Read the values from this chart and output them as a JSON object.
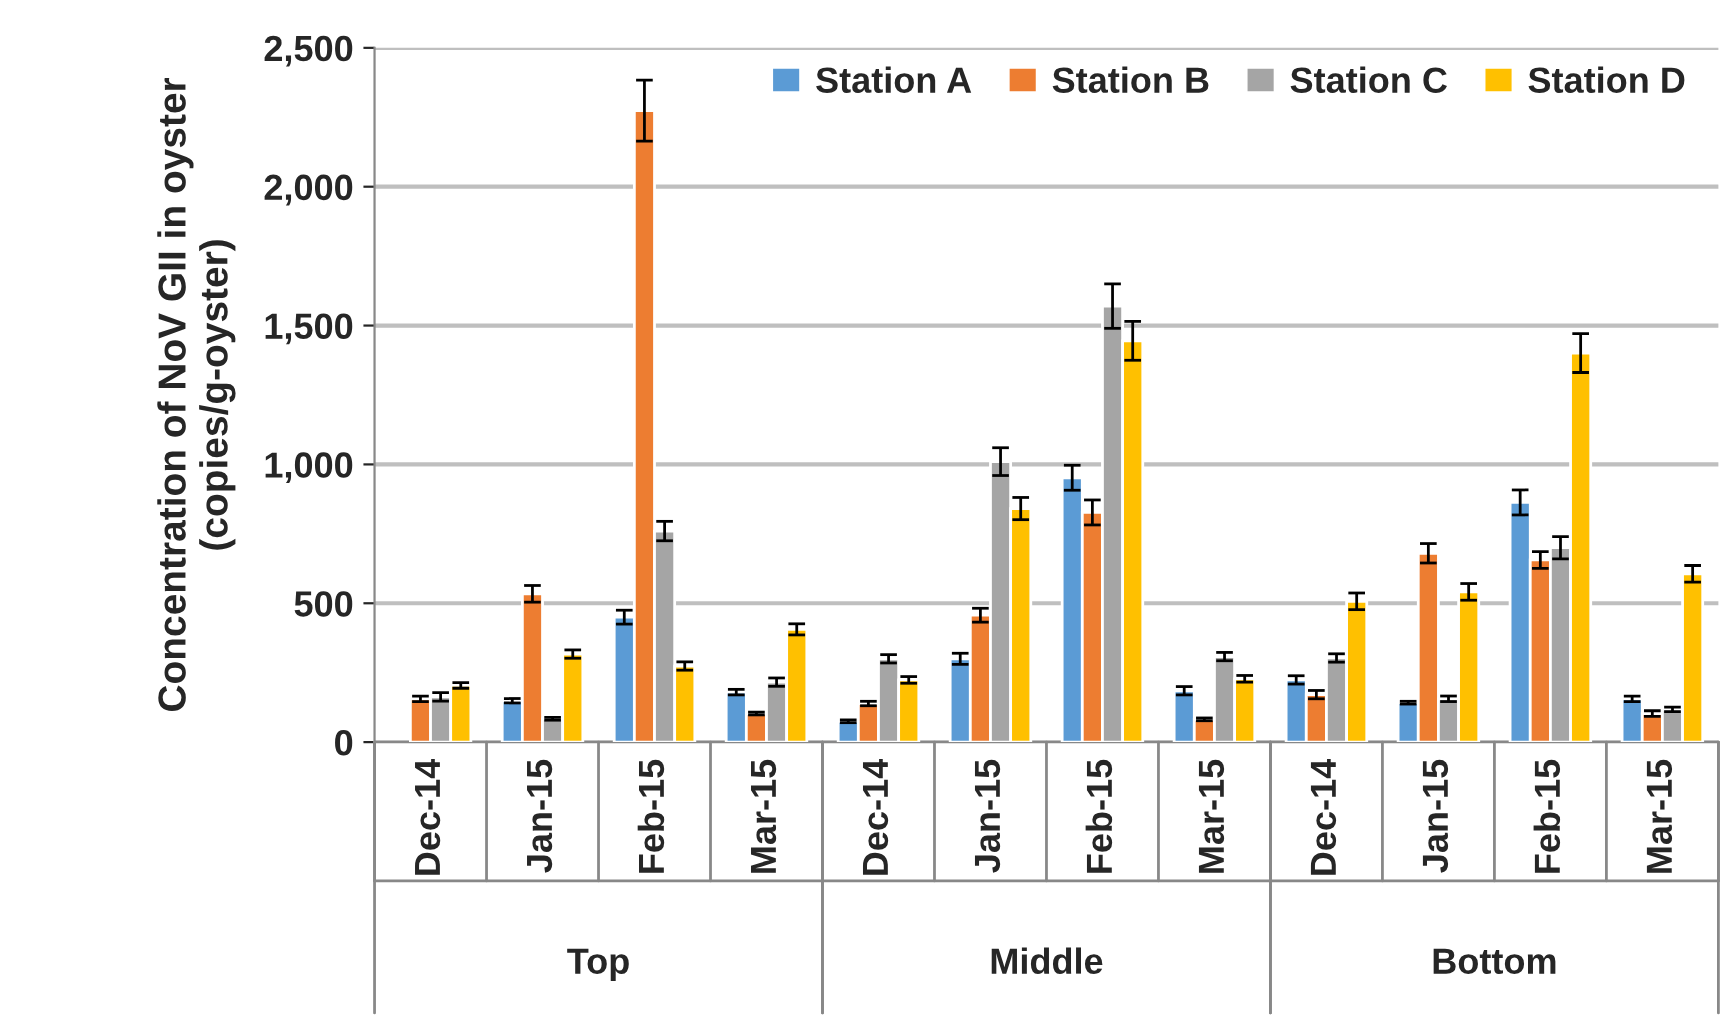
{
  "chart_data": {
    "type": "bar",
    "ylabel": "Concentration of NoV GII in oyster\n(copies/g-oyster)",
    "categories": [
      "Dec-14",
      "Jan-15",
      "Feb-15",
      "Mar-15",
      "Dec-14",
      "Jan-15",
      "Feb-15",
      "Mar-15",
      "Dec-14",
      "Jan-15",
      "Feb-15",
      "Mar-15"
    ],
    "annotations": [
      "Top",
      "Middle",
      "Bottom"
    ],
    "series": [
      {
        "name": "Station A",
        "color": "#5b9bd5",
        "values": [
          null,
          149,
          450,
          180,
          75,
          300,
          952,
          185,
          224,
          142,
          863,
          156
        ],
        "errors": [
          null,
          8,
          25,
          10,
          5,
          20,
          45,
          15,
          15,
          5,
          45,
          10
        ]
      },
      {
        "name": "Station B",
        "color": "#ed7d31",
        "values": [
          156,
          534,
          2274,
          103,
          139,
          457,
          827,
          82,
          171,
          680,
          656,
          103
        ],
        "errors": [
          10,
          30,
          110,
          5,
          8,
          25,
          45,
          5,
          15,
          35,
          30,
          10
        ]
      },
      {
        "name": "Station C",
        "color": "#a5a5a5",
        "values": [
          163,
          84,
          760,
          216,
          300,
          1010,
          1570,
          308,
          303,
          156,
          700,
          118
        ],
        "errors": [
          15,
          5,
          35,
          15,
          15,
          50,
          80,
          15,
          15,
          10,
          40,
          8
        ]
      },
      {
        "name": "Station D",
        "color": "#ffc000",
        "values": [
          204,
          317,
          274,
          406,
          224,
          841,
          1445,
          228,
          507,
          541,
          1401,
          606
        ],
        "errors": [
          10,
          15,
          15,
          20,
          12,
          40,
          70,
          12,
          30,
          30,
          70,
          30
        ]
      }
    ],
    "ylim": [
      0,
      2500
    ],
    "yticks": [
      0,
      {
        "value": 500,
        "label": "500"
      },
      {
        "value": 1000,
        "label": "1,000"
      },
      {
        "value": 1500,
        "label": "1,500"
      },
      {
        "value": 2000,
        "label": "2,000"
      },
      {
        "value": 2500,
        "label": "2,500"
      }
    ],
    "grid": "y",
    "legend": "top right"
  }
}
